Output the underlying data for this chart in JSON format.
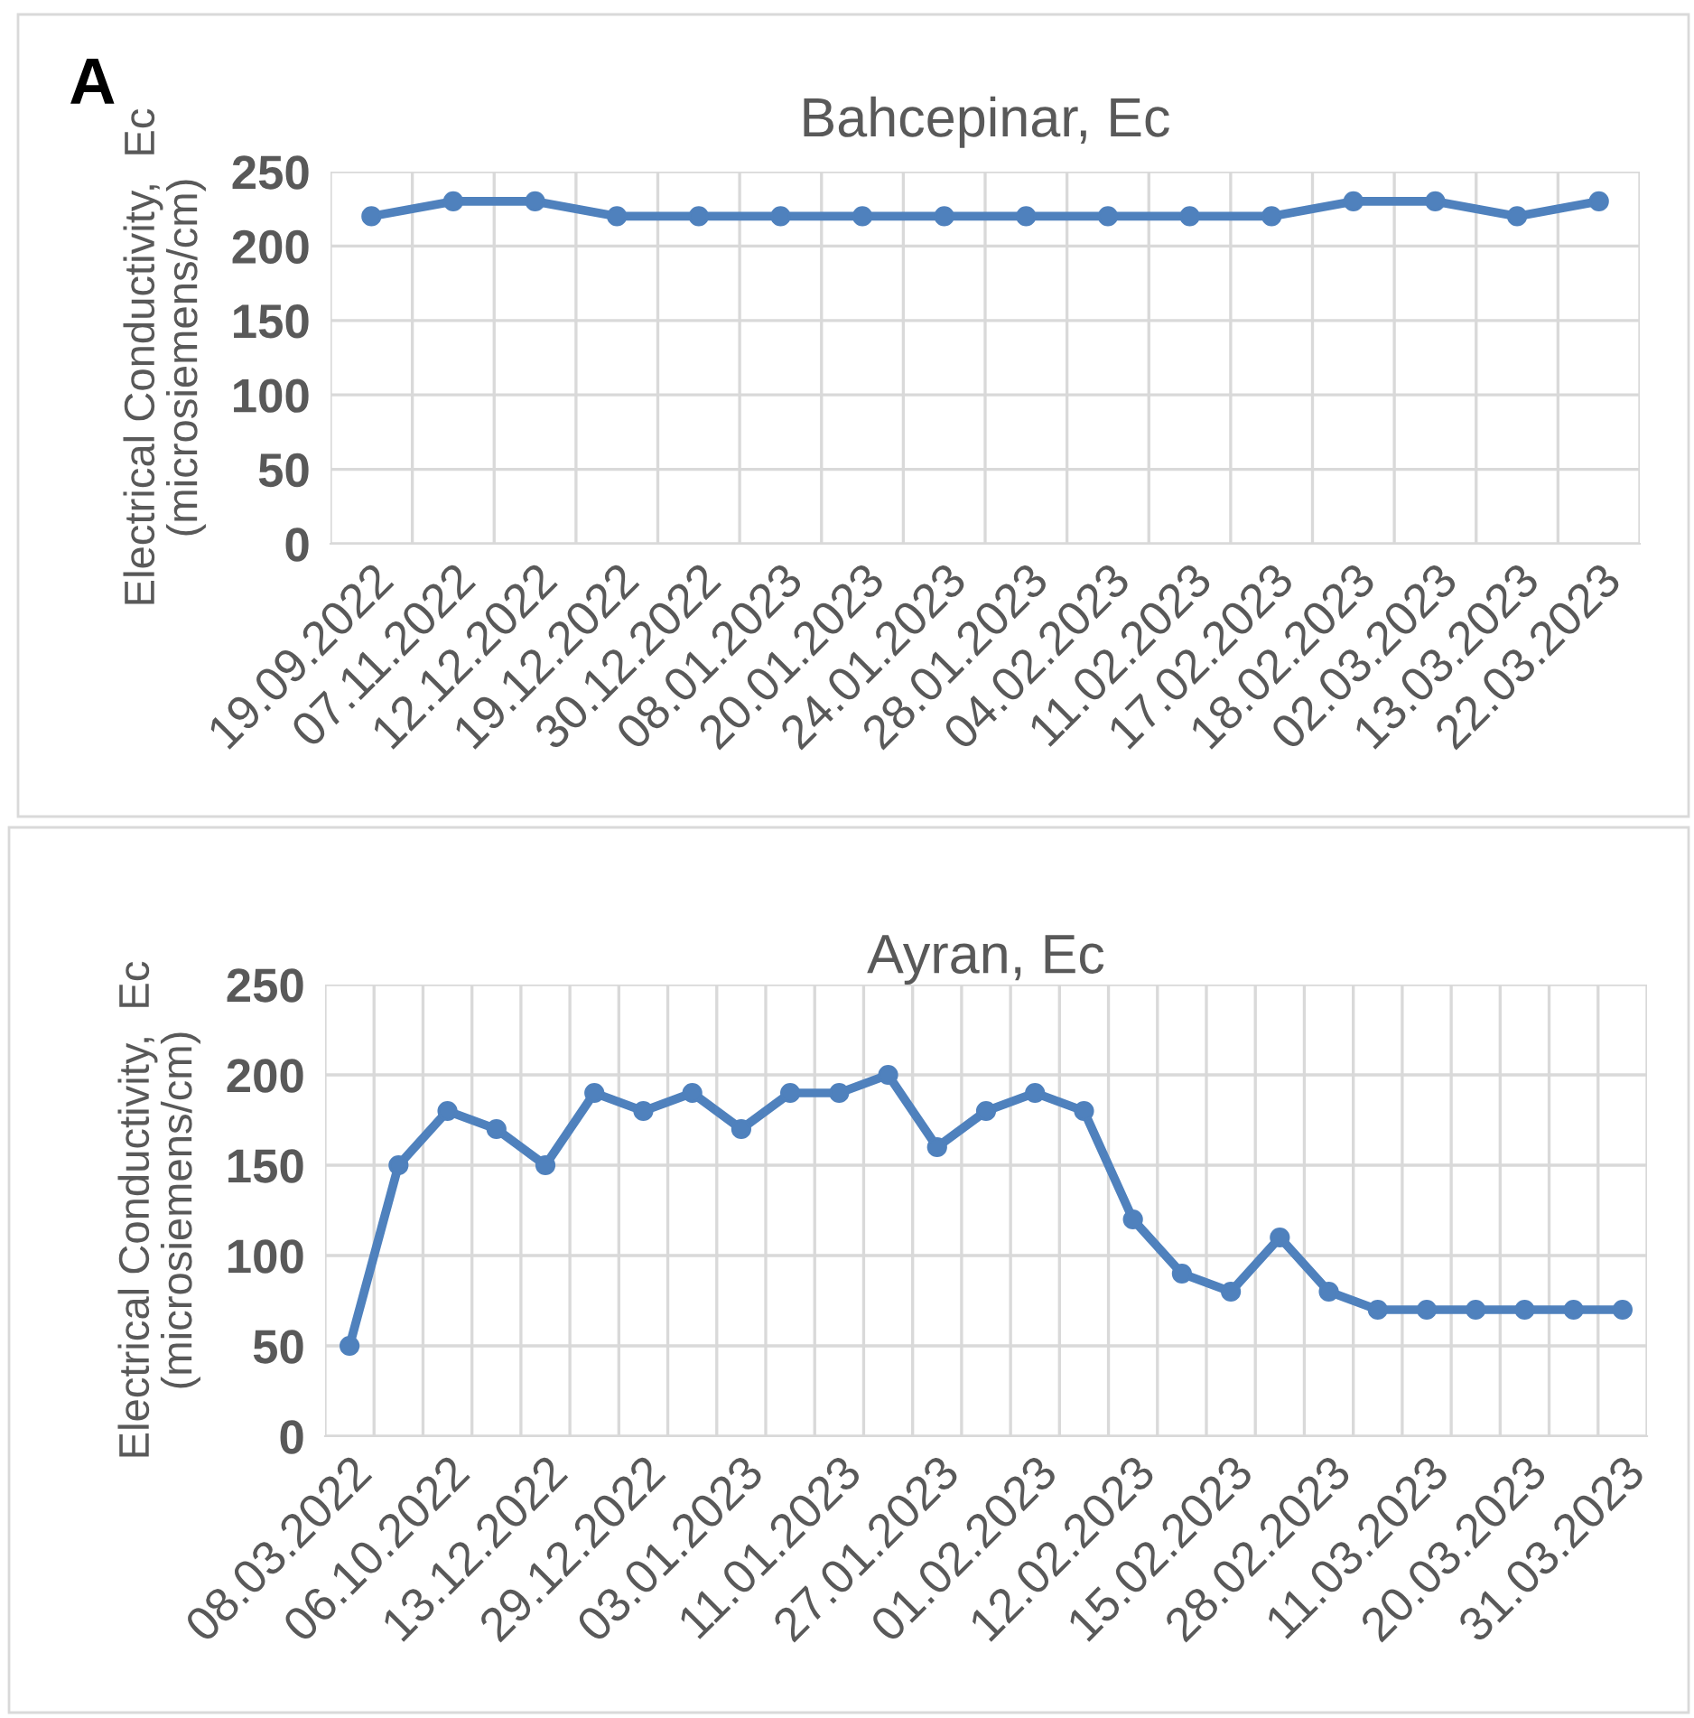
{
  "chart_data": [
    {
      "type": "line",
      "title": "Bahcepinar, Ec",
      "ylabel": "Electrical Conductivity,  Ec\n(microsiemens/cm)",
      "annotations": [
        "A"
      ],
      "categories": [
        "19.09.2022",
        "07.11.2022",
        "12.12.2022",
        "19.12.2022",
        "30.12.2022",
        "08.01.2023",
        "20.01.2023",
        "24.01.2023",
        "28.01.2023",
        "04.02.2023",
        "11.02.2023",
        "17.02.2023",
        "18.02.2023",
        "02.03.2023",
        "13.03.2023",
        "22.03.2023"
      ],
      "series": [
        {
          "color": "#4f81bd",
          "values": [
            220,
            230,
            230,
            220,
            220,
            220,
            220,
            220,
            220,
            220,
            220,
            220,
            230,
            230,
            220,
            230
          ]
        }
      ],
      "ylim": [
        0,
        250
      ],
      "yticks": [
        0,
        50,
        100,
        150,
        200,
        250
      ],
      "grid": true,
      "marker": "circle",
      "line_style": "solid",
      "legend": false
    },
    {
      "type": "line",
      "title": "Ayran, Ec",
      "ylabel": "Electrical Conductivity,  Ec\n(microsiemens/cm)",
      "categories": [
        "08.03.2022",
        null,
        "06.10.2022",
        null,
        "13.12.2022",
        null,
        "29.12.2022",
        null,
        "03.01.2023",
        null,
        "11.01.2023",
        null,
        "27.01.2023",
        null,
        "01.02.2023",
        null,
        "12.02.2023",
        null,
        "15.02.2023",
        null,
        "28.02.2023",
        null,
        "11.03.2023",
        null,
        "20.03.2023",
        null,
        "31.03.2023"
      ],
      "series": [
        {
          "color": "#4f81bd",
          "values": [
            50,
            150,
            180,
            170,
            150,
            190,
            180,
            190,
            170,
            190,
            190,
            200,
            160,
            180,
            190,
            180,
            120,
            90,
            80,
            110,
            80,
            70,
            70,
            70,
            70,
            70,
            70
          ]
        }
      ],
      "ylim": [
        0,
        250
      ],
      "yticks": [
        0,
        50,
        100,
        150,
        200,
        250
      ],
      "grid": true,
      "marker": "circle",
      "line_style": "solid",
      "legend": false
    }
  ]
}
